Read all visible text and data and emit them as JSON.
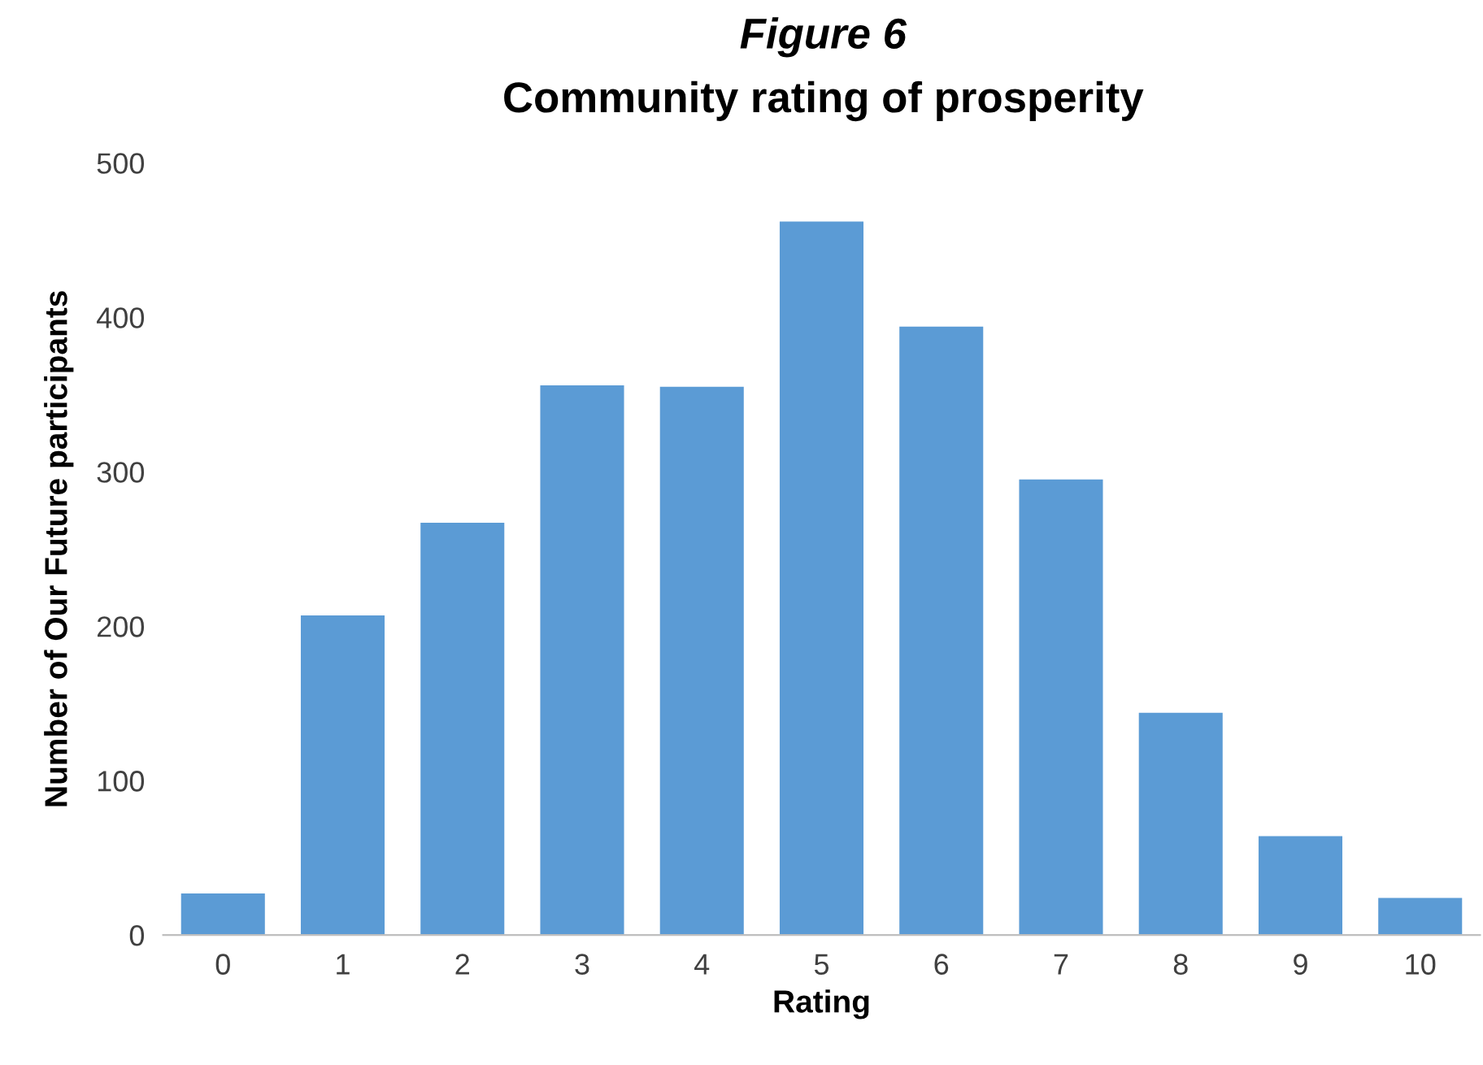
{
  "chart_data": {
    "type": "bar",
    "title": "Figure 6",
    "subtitle": "Community rating of prosperity",
    "xlabel": "Rating",
    "ylabel": "Number of Our Future participants",
    "categories": [
      "0",
      "1",
      "2",
      "3",
      "4",
      "5",
      "6",
      "7",
      "8",
      "9",
      "10"
    ],
    "values": [
      27,
      207,
      267,
      356,
      355,
      462,
      394,
      295,
      144,
      64,
      24
    ],
    "color": "#5b9bd5",
    "ylim": [
      0,
      500
    ],
    "yticks": [
      0,
      100,
      200,
      300,
      400,
      500
    ],
    "grid": false,
    "legend": false
  }
}
